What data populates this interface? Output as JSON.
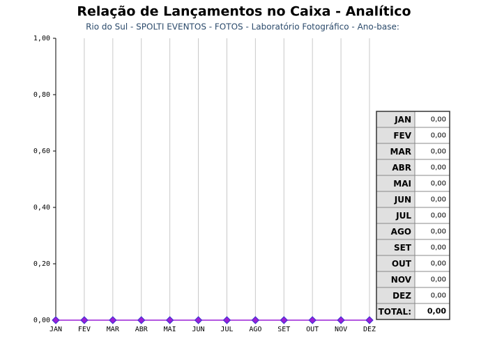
{
  "chart_data": {
    "type": "line",
    "title": "Relação de Lançamentos no Caixa - Analítico",
    "subtitle": "Rio do Sul - SPOLTI EVENTOS - FOTOS - Laboratório Fotográfico - Ano-base:",
    "categories": [
      "JAN",
      "FEV",
      "MAR",
      "ABR",
      "MAI",
      "JUN",
      "JUL",
      "AGO",
      "SET",
      "OUT",
      "NOV",
      "DEZ"
    ],
    "values": [
      0,
      0,
      0,
      0,
      0,
      0,
      0,
      0,
      0,
      0,
      0,
      0
    ],
    "value_labels": [
      "0,00",
      "0,00",
      "0,00",
      "0,00",
      "0,00",
      "0,00",
      "0,00",
      "0,00",
      "0,00",
      "0,00",
      "0,00",
      "0,00"
    ],
    "color": "#9a1fd6",
    "ylim": [
      0,
      1
    ],
    "yticks": [
      {
        "value": 0,
        "label": "0,00"
      },
      {
        "value": 0.2,
        "label": "0,20"
      },
      {
        "value": 0.4,
        "label": "0,40"
      },
      {
        "value": 0.6,
        "label": "0,60"
      },
      {
        "value": 0.8,
        "label": "0,80"
      },
      {
        "value": 1,
        "label": "1,00"
      }
    ],
    "grid": true,
    "total_title": "TOTAL:",
    "total": {
      "value": 0,
      "label": "0,00"
    }
  }
}
